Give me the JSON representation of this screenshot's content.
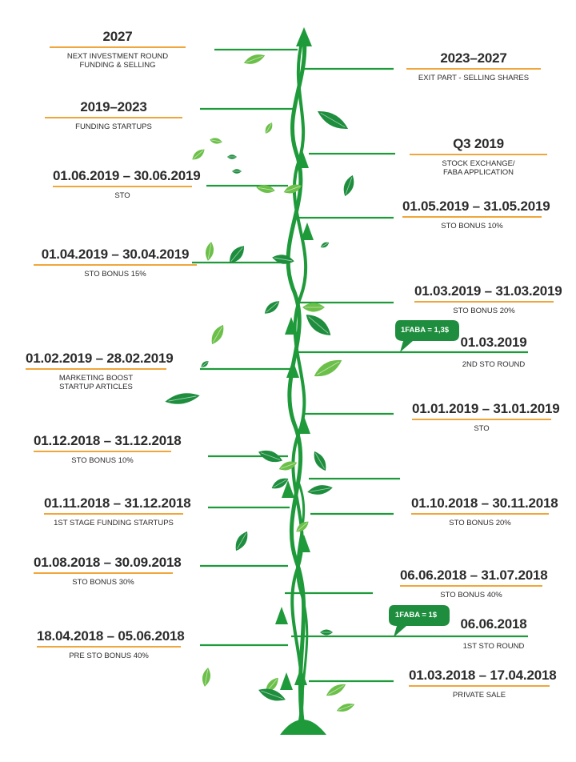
{
  "colors": {
    "stem": "#1f9a3a",
    "leaf_dark": "#1e8e3e",
    "leaf_light": "#6cc04a",
    "accent_rule": "#f0a63a",
    "text": "#2b2b2b"
  },
  "milestones": [
    {
      "id": "m2027",
      "date": "2027",
      "desc": "NEXT INVESTMENT ROUND\nFUNDING & SELLING"
    },
    {
      "id": "m2023_2027",
      "date": "2023–2027",
      "desc": "EXIT PART - SELLING SHARES"
    },
    {
      "id": "m2019_2023",
      "date": "2019–2023",
      "desc": "FUNDING STARTUPS"
    },
    {
      "id": "mq3_2019",
      "date": "Q3 2019",
      "desc": "STOCK EXCHANGE/\nFABA APPLICATION"
    },
    {
      "id": "m_jun2019",
      "date": "01.06.2019 – 30.06.2019",
      "desc": "STO"
    },
    {
      "id": "m_may2019",
      "date": "01.05.2019 – 31.05.2019",
      "desc": "STO BONUS 10%"
    },
    {
      "id": "m_apr2019",
      "date": "01.04.2019 – 30.04.2019",
      "desc": "STO BONUS 15%"
    },
    {
      "id": "m_mar2019",
      "date": "01.03.2019 – 31.03.2019",
      "desc": "STO BONUS 20%"
    },
    {
      "id": "m_2nd_sto",
      "date": "01.03.2019",
      "desc": "2ND STO ROUND"
    },
    {
      "id": "m_feb2019",
      "date": "01.02.2019 – 28.02.2019",
      "desc": "MARKETING BOOST\nSTARTUP ARTICLES"
    },
    {
      "id": "m_jan2019",
      "date": "01.01.2019 – 31.01.2019",
      "desc": "STO"
    },
    {
      "id": "m_dec2018",
      "date": "01.12.2018 – 31.12.2018",
      "desc": "STO BONUS 10%"
    },
    {
      "id": "m_nov_dec2018",
      "date": "01.11.2018 – 31.12.2018",
      "desc": "1ST STAGE FUNDING STARTUPS"
    },
    {
      "id": "m_oct_nov2018",
      "date": "01.10.2018 – 30.11.2018",
      "desc": "STO BONUS 20%"
    },
    {
      "id": "m_aug_sep2018",
      "date": "01.08.2018 – 30.09.2018",
      "desc": "STO BONUS 30%"
    },
    {
      "id": "m_jun_jul2018",
      "date": "06.06.2018 – 31.07.2018",
      "desc": "STO BONUS 40%"
    },
    {
      "id": "m_1st_sto",
      "date": "06.06.2018",
      "desc": "1ST STO ROUND"
    },
    {
      "id": "m_apr_jun2018",
      "date": "18.04.2018 – 05.06.2018",
      "desc": "PRE STO BONUS 40%"
    },
    {
      "id": "m_mar_apr2018",
      "date": "01.03.2018 – 17.04.2018",
      "desc": "PRIVATE SALE"
    }
  ],
  "bubbles": [
    {
      "id": "b_second",
      "text": "1FABA = 1,3$"
    },
    {
      "id": "b_first",
      "text": "1FABA = 1$"
    }
  ]
}
